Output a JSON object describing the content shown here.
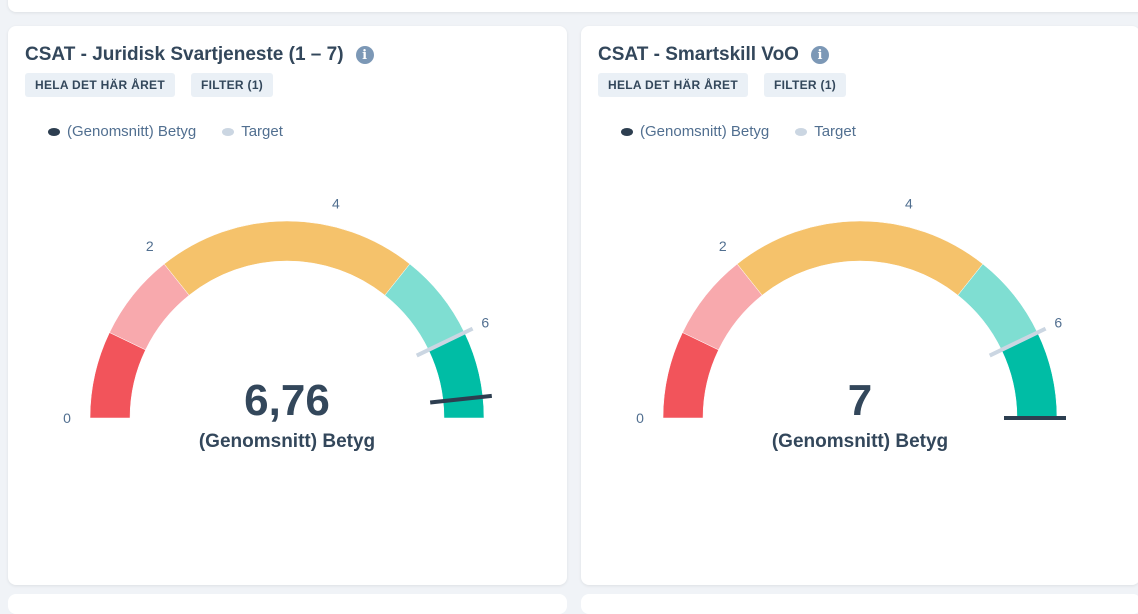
{
  "cards": [
    {
      "title": "CSAT - Juridisk Svartjeneste (1 – 7)",
      "chips": [
        "HELA DET HÄR ÅRET",
        "FILTER (1)"
      ],
      "legend": [
        {
          "label": "(Genomsnitt) Betyg",
          "color": "#2d3e50"
        },
        {
          "label": "Target",
          "color": "#cbd6e2"
        }
      ],
      "gauge": {
        "min": 0,
        "max": 7,
        "value": 6.76,
        "value_label": "6,76",
        "target": 6,
        "series_label": "(Genomsnitt) Betyg",
        "tick_labels": [
          "0",
          "2",
          "4",
          "6"
        ],
        "bands": [
          {
            "from": 0,
            "to": 1,
            "color": "#f2545b"
          },
          {
            "from": 1,
            "to": 2,
            "color": "#f8a9ad"
          },
          {
            "from": 2,
            "to": 5,
            "color": "#f5c26b"
          },
          {
            "from": 5,
            "to": 6,
            "color": "#7fded2"
          },
          {
            "from": 6,
            "to": 7,
            "color": "#00bda5"
          }
        ]
      }
    },
    {
      "title": "CSAT - Smartskill VoO",
      "chips": [
        "HELA DET HÄR ÅRET",
        "FILTER (1)"
      ],
      "legend": [
        {
          "label": "(Genomsnitt) Betyg",
          "color": "#2d3e50"
        },
        {
          "label": "Target",
          "color": "#cbd6e2"
        }
      ],
      "gauge": {
        "min": 0,
        "max": 7,
        "value": 7,
        "value_label": "7",
        "target": 6,
        "series_label": "(Genomsnitt) Betyg",
        "tick_labels": [
          "0",
          "2",
          "4",
          "6"
        ],
        "bands": [
          {
            "from": 0,
            "to": 1,
            "color": "#f2545b"
          },
          {
            "from": 1,
            "to": 2,
            "color": "#f8a9ad"
          },
          {
            "from": 2,
            "to": 5,
            "color": "#f5c26b"
          },
          {
            "from": 5,
            "to": 6,
            "color": "#7fded2"
          },
          {
            "from": 6,
            "to": 7,
            "color": "#00bda5"
          }
        ]
      }
    }
  ]
}
